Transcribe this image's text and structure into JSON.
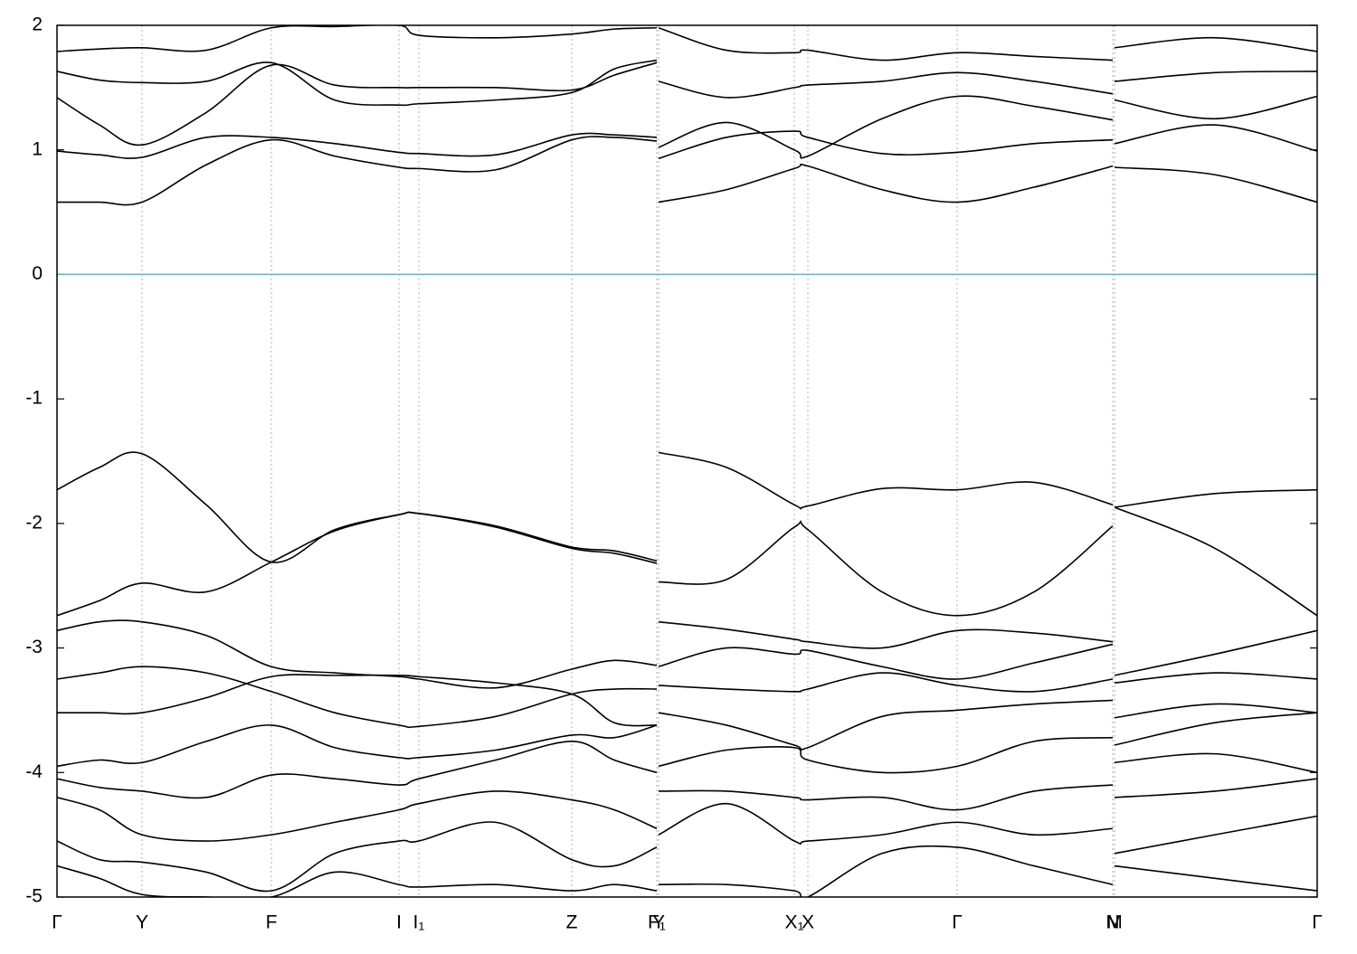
{
  "chart_data": {
    "type": "line",
    "grid": "x",
    "zero_line_color": "#5fb3c8",
    "ylim": [
      -5,
      2
    ],
    "yticks": [
      -5,
      -4,
      -3,
      -2,
      -1,
      0,
      1,
      2
    ],
    "xlim": [
      0,
      13.93
    ],
    "xticks": [
      {
        "value": 0,
        "label": "Γ"
      },
      {
        "value": 0.94,
        "label": "Y"
      },
      {
        "value": 2.37,
        "label": "F"
      },
      {
        "value": 3.78,
        "label": "I"
      },
      {
        "value": 4.0,
        "label": "I₁"
      },
      {
        "value": 5.69,
        "label": "Z"
      },
      {
        "value": 6.63,
        "label": "F₁"
      },
      {
        "value": 6.65,
        "label": "Y"
      },
      {
        "value": 8.15,
        "label": "X₁"
      },
      {
        "value": 8.3,
        "label": "X"
      },
      {
        "value": 9.95,
        "label": "Γ"
      },
      {
        "value": 11.67,
        "label": "N"
      },
      {
        "value": 11.69,
        "label": "M"
      },
      {
        "value": 13.93,
        "label": "Γ"
      }
    ],
    "x": [
      0,
      0.47,
      0.94,
      1.65,
      2.37,
      3.07,
      3.78,
      4.0,
      4.85,
      5.69,
      6.16,
      6.63,
      6.64,
      6.65,
      7.4,
      8.15,
      8.3,
      9.12,
      9.95,
      10.8,
      11.67,
      11.68,
      11.69,
      12.8,
      13.93
    ],
    "series": [
      {
        "color": "#000000",
        "values": [
          1.79,
          1.81,
          1.82,
          1.8,
          1.98,
          1.99,
          2.0,
          1.92,
          1.9,
          1.93,
          1.97,
          1.98,
          null,
          1.98,
          1.8,
          1.78,
          1.8,
          1.72,
          1.78,
          1.75,
          1.72,
          null,
          1.82,
          1.9,
          1.79
        ]
      },
      {
        "color": "#000000",
        "values": [
          1.63,
          1.56,
          1.54,
          1.55,
          1.7,
          1.4,
          1.36,
          1.37,
          1.4,
          1.46,
          1.65,
          1.72,
          null,
          1.55,
          1.42,
          1.5,
          1.52,
          1.55,
          1.62,
          1.55,
          1.45,
          null,
          1.55,
          1.62,
          1.63
        ]
      },
      {
        "color": "#000000",
        "values": [
          1.42,
          1.2,
          1.04,
          1.3,
          1.68,
          1.52,
          1.5,
          1.5,
          1.5,
          1.48,
          1.6,
          1.7,
          null,
          1.02,
          1.22,
          1.0,
          0.95,
          1.25,
          1.43,
          1.35,
          1.24,
          null,
          1.4,
          1.25,
          1.43
        ]
      },
      {
        "color": "#000000",
        "values": [
          0.99,
          0.96,
          0.94,
          1.1,
          1.1,
          1.05,
          0.98,
          0.97,
          0.96,
          1.12,
          1.12,
          1.1,
          null,
          0.93,
          1.1,
          1.15,
          1.1,
          0.97,
          0.98,
          1.05,
          1.08,
          null,
          1.05,
          1.2,
          0.99
        ]
      },
      {
        "color": "#000000",
        "values": [
          0.58,
          0.58,
          0.58,
          0.88,
          1.08,
          0.95,
          0.86,
          0.85,
          0.84,
          1.08,
          1.1,
          1.07,
          null,
          0.58,
          0.68,
          0.85,
          0.87,
          0.68,
          0.58,
          0.7,
          0.87,
          null,
          0.86,
          0.8,
          0.58
        ]
      },
      {
        "color": "#000000",
        "values": [
          -1.73,
          -1.55,
          -1.44,
          -1.85,
          -2.31,
          -2.05,
          -1.93,
          -1.92,
          -2.02,
          -2.19,
          -2.22,
          -2.3,
          null,
          -1.43,
          -1.55,
          -1.85,
          -1.86,
          -1.72,
          -1.73,
          -1.67,
          -1.85,
          null,
          -1.87,
          -1.76,
          -1.73
        ]
      },
      {
        "color": "#000000",
        "values": [
          -2.74,
          -2.62,
          -2.48,
          -2.55,
          -2.31,
          -2.06,
          -1.93,
          -1.92,
          -2.03,
          -2.2,
          -2.24,
          -2.32,
          null,
          -2.47,
          -2.45,
          -2.03,
          -2.05,
          -2.55,
          -2.74,
          -2.55,
          -2.02,
          null,
          -1.87,
          -2.2,
          -2.74
        ]
      },
      {
        "color": "#000000",
        "values": [
          -2.86,
          -2.79,
          -2.79,
          -2.9,
          -3.15,
          -3.2,
          -3.23,
          -3.25,
          -3.32,
          -3.17,
          -3.1,
          -3.14,
          null,
          -2.79,
          -2.85,
          -2.93,
          -2.95,
          -3.0,
          -2.86,
          -2.88,
          -2.95,
          null,
          -3.22,
          -3.05,
          -2.86
        ]
      },
      {
        "color": "#000000",
        "values": [
          -3.25,
          -3.2,
          -3.15,
          -3.2,
          -3.35,
          -3.52,
          -3.62,
          -3.63,
          -3.55,
          -3.37,
          -3.33,
          -3.33,
          null,
          -3.15,
          -3.0,
          -3.05,
          -3.02,
          -3.15,
          -3.25,
          -3.12,
          -2.97,
          null,
          -3.28,
          -3.2,
          -3.25
        ]
      },
      {
        "color": "#000000",
        "values": [
          -3.52,
          -3.52,
          -3.52,
          -3.4,
          -3.23,
          -3.22,
          -3.22,
          -3.23,
          -3.28,
          -3.37,
          -3.6,
          -3.62,
          null,
          -3.3,
          -3.33,
          -3.35,
          -3.33,
          -3.2,
          -3.3,
          -3.35,
          -3.25,
          null,
          -3.56,
          -3.45,
          -3.52
        ]
      },
      {
        "color": "#000000",
        "values": [
          -3.95,
          -3.9,
          -3.92,
          -3.75,
          -3.62,
          -3.8,
          -3.88,
          -3.88,
          -3.82,
          -3.7,
          -3.72,
          -3.62,
          null,
          -3.52,
          -3.62,
          -3.78,
          -3.8,
          -3.55,
          -3.5,
          -3.45,
          -3.42,
          null,
          -3.78,
          -3.6,
          -3.52
        ]
      },
      {
        "color": "#000000",
        "values": [
          -4.05,
          -4.12,
          -4.15,
          -4.2,
          -4.02,
          -4.05,
          -4.1,
          -4.05,
          -3.9,
          -3.75,
          -3.9,
          -4.0,
          null,
          -3.95,
          -3.82,
          -3.8,
          -3.9,
          -4.0,
          -3.95,
          -3.75,
          -3.72,
          null,
          -3.92,
          -3.85,
          -4.0
        ]
      },
      {
        "color": "#000000",
        "values": [
          -4.2,
          -4.3,
          -4.5,
          -4.55,
          -4.5,
          -4.4,
          -4.3,
          -4.25,
          -4.15,
          -4.22,
          -4.3,
          -4.45,
          null,
          -4.15,
          -4.15,
          -4.2,
          -4.22,
          -4.2,
          -4.3,
          -4.15,
          -4.1,
          null,
          -4.2,
          -4.15,
          -4.05
        ]
      },
      {
        "color": "#000000",
        "values": [
          -4.55,
          -4.7,
          -4.72,
          -4.8,
          -4.95,
          -4.65,
          -4.55,
          -4.55,
          -4.4,
          -4.7,
          -4.75,
          -4.6,
          null,
          -4.5,
          -4.25,
          -4.55,
          -4.55,
          -4.5,
          -4.4,
          -4.5,
          -4.45,
          null,
          -4.65,
          -4.5,
          -4.35
        ]
      },
      {
        "color": "#000000",
        "values": [
          -4.75,
          -4.85,
          -4.98,
          -5.0,
          -5.0,
          -4.8,
          -4.9,
          -4.92,
          -4.9,
          -4.95,
          -4.9,
          -4.95,
          null,
          -4.9,
          -4.9,
          -4.95,
          -5.0,
          -4.65,
          -4.6,
          -4.75,
          -4.9,
          null,
          -4.75,
          -4.85,
          -4.95
        ]
      }
    ]
  }
}
